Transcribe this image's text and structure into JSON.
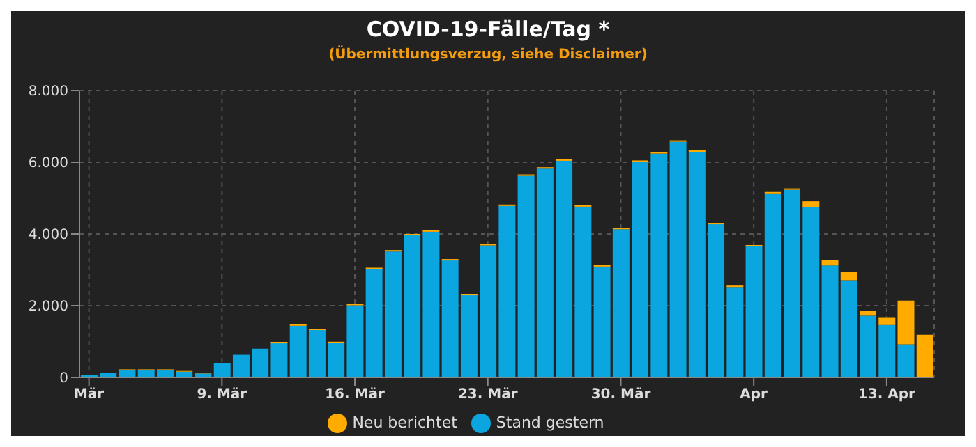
{
  "chart_data": {
    "type": "bar",
    "title": "COVID-19-Fälle/Tag *",
    "subtitle": "(Übermittlungsverzug, siehe Disclaimer)",
    "categories": [
      "Mär",
      null,
      null,
      null,
      null,
      null,
      null,
      "9. Mär",
      null,
      null,
      null,
      null,
      null,
      null,
      "16. Mär",
      null,
      null,
      null,
      null,
      null,
      null,
      "23. Mär",
      null,
      null,
      null,
      null,
      null,
      null,
      "30. Mär",
      null,
      null,
      null,
      null,
      null,
      null,
      "Apr",
      null,
      null,
      null,
      null,
      null,
      null,
      "13. Apr",
      null,
      null
    ],
    "stacked": true,
    "series": [
      {
        "name": "Stand gestern",
        "color": "#0ba5e0",
        "values": [
          60,
          120,
          200,
          200,
          200,
          160,
          110,
          390,
          630,
          800,
          950,
          1440,
          1320,
          960,
          2010,
          3020,
          3510,
          3960,
          4060,
          3260,
          2290,
          3680,
          4780,
          5620,
          5820,
          6040,
          4760,
          3090,
          4130,
          6010,
          6240,
          6570,
          6290,
          4270,
          2520,
          3650,
          5130,
          5230,
          4740,
          3120,
          2710,
          1720,
          1460,
          920,
          0
        ]
      },
      {
        "name": "Neu berichtet",
        "color": "#ffab00",
        "values": [
          0,
          0,
          25,
          25,
          25,
          20,
          25,
          0,
          0,
          0,
          40,
          40,
          35,
          35,
          40,
          40,
          40,
          40,
          40,
          40,
          40,
          40,
          40,
          40,
          40,
          40,
          40,
          40,
          40,
          40,
          40,
          40,
          40,
          40,
          40,
          40,
          40,
          40,
          170,
          150,
          240,
          130,
          200,
          1220,
          1190
        ]
      }
    ],
    "ylim": [
      0,
      8000
    ],
    "yticks": [
      {
        "value": 0,
        "label": "0"
      },
      {
        "value": 2000,
        "label": "2.000"
      },
      {
        "value": 4000,
        "label": "4.000"
      },
      {
        "value": 6000,
        "label": "6.000"
      },
      {
        "value": 8000,
        "label": "8.000"
      }
    ],
    "grid": true,
    "legend": "bottom"
  }
}
